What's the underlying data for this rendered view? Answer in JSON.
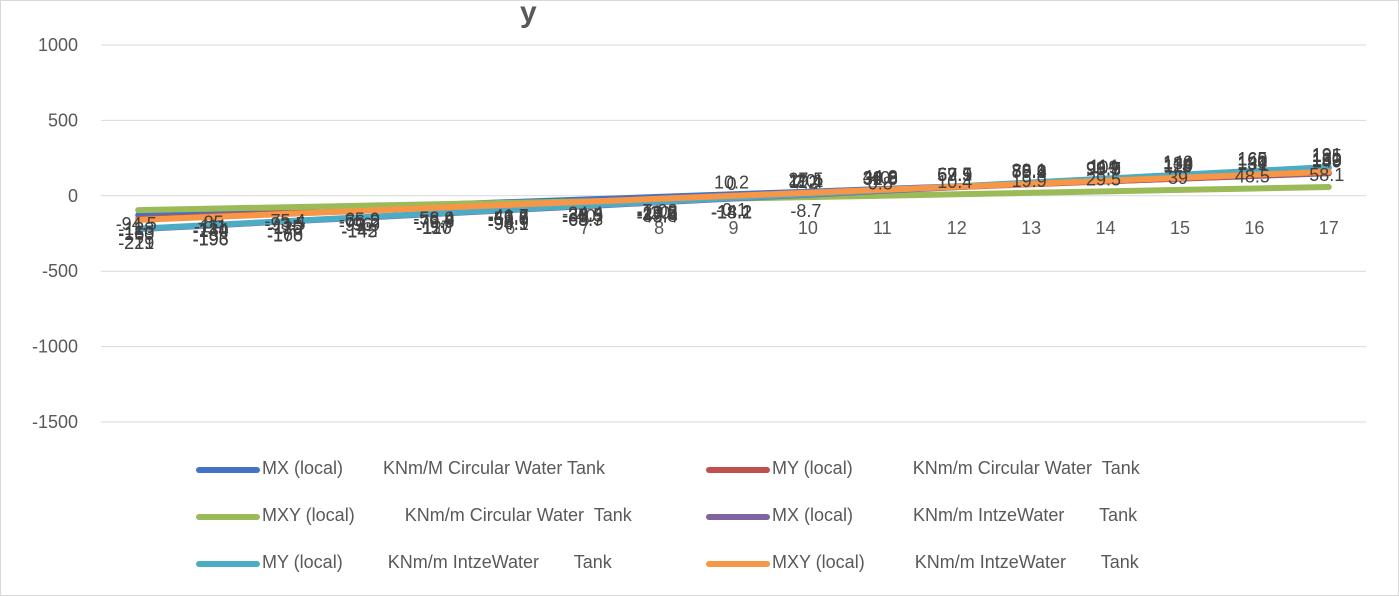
{
  "chart_data": {
    "type": "line",
    "title": "y",
    "xlabel": "",
    "ylabel": "",
    "categories": [
      "1",
      "2",
      "3",
      "4",
      "5",
      "6",
      "7",
      "8",
      "9",
      "10",
      "11",
      "12",
      "13",
      "14",
      "15",
      "16",
      "17"
    ],
    "ylim": [
      -1500,
      1000
    ],
    "yticks": [
      1000,
      500,
      0,
      -500,
      -1000,
      -1500
    ],
    "grid": true,
    "legend_position": "bottom",
    "series": [
      {
        "name": "MX (local)        KNm/M Circular Water Tank",
        "color": "#4472c4",
        "values": [
          -128,
          -111,
          -93.5,
          -76.2,
          -58.9,
          -41.7,
          -24.4,
          -7.08,
          10.2,
          27.5,
          44.8,
          62.1,
          79.4,
          96.7,
          114,
          131,
          149
        ],
        "labels": [
          "-128",
          "-111",
          "-93.5",
          "-76.2",
          "-58.9",
          "-41.7",
          "-24.4",
          "-7.08",
          "10.2",
          "27.5",
          "44.8",
          "62.1",
          "79.4",
          "96.7",
          "114",
          "131",
          "149"
        ]
      },
      {
        "name": "MY (local)            KNm/m Circular Water  Tank",
        "color": "#c0504d",
        "values": [
          -153,
          -134,
          -115,
          -96,
          -76.8,
          -57.6,
          -38.5,
          -19.3,
          -0.1,
          19.1,
          38.3,
          57.5,
          76.6,
          95.8,
          115,
          134,
          153
        ],
        "labels": [
          "-153",
          "-134",
          "-115",
          "-96",
          "-76.8",
          "-57.6",
          "-38.5",
          "-19.3",
          "-0.1",
          "19.1",
          "38.3",
          "57.5",
          "76.6",
          "95.8",
          "115",
          "134",
          "153"
        ]
      },
      {
        "name": "MXY (local)          KNm/m Circular Water  Tank",
        "color": "#9bbb59",
        "values": [
          -94.5,
          -85,
          -75.4,
          -65.9,
          -56.4,
          -46.8,
          -37.3,
          -27.8,
          -18.2,
          -8.7,
          0.8,
          10.4,
          19.9,
          29.5,
          39,
          48.5,
          58.1
        ],
        "labels": [
          "-94.5",
          "-85",
          "-75.4",
          "-65.9",
          "-56.4",
          "-46.8",
          "-37.3",
          "-27.8",
          "-18.2",
          "-8.7",
          "0.8",
          "10.4",
          "19.9",
          "29.5",
          "39",
          "48.5",
          "58.1"
        ]
      },
      {
        "name": "MX (local)            KNm/m IntzeWater       Tank",
        "color": "#8064a2",
        "values": [
          -221,
          -196,
          -170,
          -145,
          -120,
          -94.1,
          -68.7,
          -43.4,
          -18.1,
          7.2,
          32.6,
          57.9,
          83.2,
          109,
          134,
          160,
          185
        ],
        "labels": [
          "-221",
          "-196",
          "-170",
          "-145",
          "-120",
          "-94.1",
          "-68.7",
          "-43.4",
          "-18.1",
          "7.2",
          "32.6",
          "57.9",
          "83.2",
          "109",
          "134",
          "160",
          "185"
        ]
      },
      {
        "name": "MY (local)         KNm/m IntzeWater       Tank",
        "color": "#4bacc6",
        "values": [
          -219,
          -193,
          -168,
          -142,
          -117,
          -90.9,
          -65.3,
          -39.8,
          -14.2,
          11.4,
          36.9,
          62.5,
          88.1,
          114,
          140,
          165,
          191
        ],
        "labels": [
          "-219",
          "-193",
          "-168",
          "-142",
          "-117",
          "-90.9",
          "-65.3",
          "-39.8",
          "-14.2",
          "11.4",
          "36.9",
          "62.5",
          "88.1",
          "114",
          "140",
          "165",
          "191"
        ]
      },
      {
        "name": "MXY (local)          KNm/m IntzeWater       Tank",
        "color": "#f79646",
        "values": [
          -160,
          -140,
          -120,
          -99.9,
          -79.9,
          -59.9,
          -40,
          -20,
          0,
          20,
          40,
          59.9,
          79.9,
          99.9,
          120,
          140,
          160
        ],
        "labels": [
          "-160",
          "-140",
          "-120",
          "-99.9",
          "-79.9",
          "-59.9",
          "-40",
          "-20",
          "0",
          "20",
          "40",
          "59.9",
          "79.9",
          "99.9",
          "120",
          "140",
          "160"
        ]
      }
    ]
  }
}
